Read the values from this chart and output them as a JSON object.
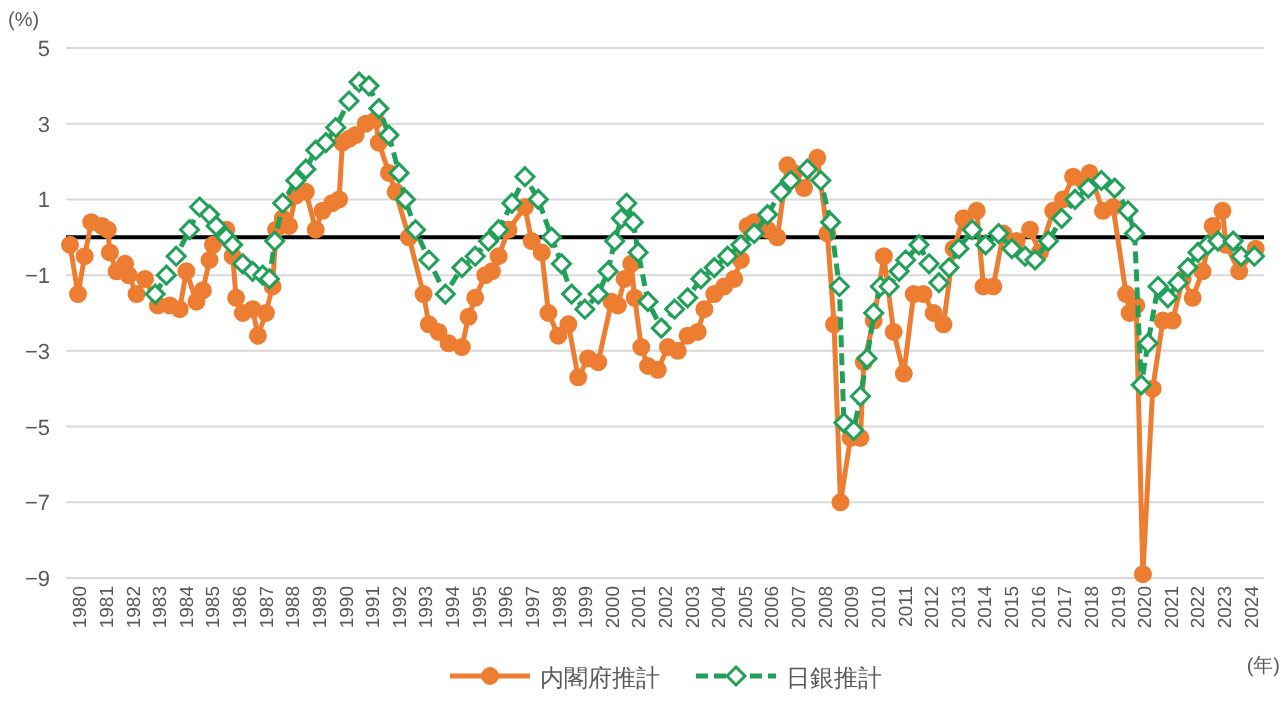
{
  "chart_data": {
    "type": "line",
    "ylabel": "(%)",
    "xlabel": "(年)",
    "xlim": [
      1980,
      2025
    ],
    "ylim": [
      -9,
      5
    ],
    "yticks": [
      {
        "value": -9,
        "label": "−9"
      },
      {
        "value": -7,
        "label": "−7"
      },
      {
        "value": -5,
        "label": "−5"
      },
      {
        "value": -3,
        "label": "−3"
      },
      {
        "value": -1,
        "label": "−1"
      },
      1,
      3,
      5
    ],
    "xticks": [
      {
        "value": 1980.5,
        "label": "1980"
      },
      {
        "value": 1981.5,
        "label": "1981"
      },
      {
        "value": 1982.5,
        "label": "1982"
      },
      {
        "value": 1983.5,
        "label": "1983"
      },
      {
        "value": 1984.5,
        "label": "1984"
      },
      {
        "value": 1985.5,
        "label": "1985"
      },
      {
        "value": 1986.5,
        "label": "1986"
      },
      {
        "value": 1987.5,
        "label": "1987"
      },
      {
        "value": 1988.5,
        "label": "1988"
      },
      {
        "value": 1989.5,
        "label": "1989"
      },
      {
        "value": 1990.5,
        "label": "1990"
      },
      {
        "value": 1991.5,
        "label": "1991"
      },
      {
        "value": 1992.5,
        "label": "1992"
      },
      {
        "value": 1993.5,
        "label": "1993"
      },
      {
        "value": 1994.5,
        "label": "1994"
      },
      {
        "value": 1995.5,
        "label": "1995"
      },
      {
        "value": 1996.5,
        "label": "1996"
      },
      {
        "value": 1997.5,
        "label": "1997"
      },
      {
        "value": 1998.5,
        "label": "1998"
      },
      {
        "value": 1999.5,
        "label": "1999"
      },
      {
        "value": 2000.5,
        "label": "2000"
      },
      {
        "value": 2001.5,
        "label": "2001"
      },
      {
        "value": 2002.5,
        "label": "2002"
      },
      {
        "value": 2003.5,
        "label": "2003"
      },
      {
        "value": 2004.5,
        "label": "2004"
      },
      {
        "value": 2005.5,
        "label": "2005"
      },
      {
        "value": 2006.5,
        "label": "2006"
      },
      {
        "value": 2007.5,
        "label": "2007"
      },
      {
        "value": 2008.5,
        "label": "2008"
      },
      {
        "value": 2009.5,
        "label": "2009"
      },
      {
        "value": 2010.5,
        "label": "2010"
      },
      {
        "value": 2011.5,
        "label": "2011"
      },
      {
        "value": 2012.5,
        "label": "2012"
      },
      {
        "value": 2013.5,
        "label": "2013"
      },
      {
        "value": 2014.5,
        "label": "2014"
      },
      {
        "value": 2015.5,
        "label": "2015"
      },
      {
        "value": 2016.5,
        "label": "2016"
      },
      {
        "value": 2017.5,
        "label": "2017"
      },
      {
        "value": 2018.5,
        "label": "2018"
      },
      {
        "value": 2019.5,
        "label": "2019"
      },
      {
        "value": 2020.5,
        "label": "2020"
      },
      {
        "value": 2021.5,
        "label": "2021"
      },
      {
        "value": 2022.5,
        "label": "2022"
      },
      {
        "value": 2023.5,
        "label": "2023"
      },
      {
        "value": 2024.5,
        "label": "2024"
      }
    ],
    "grid": "y",
    "legend": "bottom",
    "ref_lines": [
      {
        "axis": "y",
        "value": 0,
        "color": "#000000"
      }
    ],
    "series": [
      {
        "name": "内閣府推計",
        "color": "#ed7d31",
        "marker": "circle",
        "line_style": "solid",
        "x": [
          1980.15,
          1980.45,
          1980.7,
          1980.95,
          1981.35,
          1981.57,
          1981.65,
          1981.9,
          1982.22,
          1982.35,
          1982.65,
          1982.97,
          1983.45,
          1983.9,
          1984.27,
          1984.52,
          1984.9,
          1985.14,
          1985.39,
          1985.52,
          1986.02,
          1986.26,
          1986.39,
          1986.64,
          1987.01,
          1987.21,
          1987.51,
          1987.76,
          1987.89,
          1988.14,
          1988.38,
          1988.63,
          1989.01,
          1989.38,
          1989.63,
          1990.0,
          1990.26,
          1990.38,
          1990.63,
          1990.88,
          1991.26,
          1991.63,
          1991.75,
          1992.13,
          1992.38,
          1992.88,
          1993.43,
          1993.63,
          1993.99,
          1994.37,
          1994.87,
          1995.12,
          1995.37,
          1995.75,
          1996.0,
          1996.25,
          1996.62,
          1997.24,
          1997.49,
          1997.87,
          1998.12,
          1998.49,
          1998.87,
          1999.24,
          1999.61,
          1999.99,
          2000.49,
          2000.73,
          2000.98,
          2001.23,
          2001.36,
          2001.61,
          2001.86,
          2002.23,
          2002.61,
          2002.98,
          2003.35,
          2003.73,
          2003.98,
          2004.35,
          2004.72,
          2005.1,
          2005.35,
          2005.6,
          2005.85,
          2006.35,
          2006.72,
          2007.1,
          2007.35,
          2007.72,
          2008.22,
          2008.6,
          2008.85,
          2009.09,
          2009.47,
          2009.84,
          2009.97,
          2010.34,
          2010.72,
          2011.09,
          2011.47,
          2011.84,
          2012.21,
          2012.59,
          2012.96,
          2013.34,
          2013.71,
          2014.21,
          2014.46,
          2014.83,
          2015.21,
          2015.71,
          2016.21,
          2016.58,
          2017.08,
          2017.45,
          2017.83,
          2018.2,
          2018.45,
          2018.95,
          2019.33,
          2019.82,
          2019.95,
          2020.2,
          2020.45,
          2020.82,
          2021.2,
          2021.57,
          2021.95,
          2022.32,
          2022.69,
          2023.07,
          2023.44,
          2023.57,
          2024.07,
          2024.69
        ],
        "values": [
          -0.2,
          -1.5,
          -0.5,
          0.4,
          0.3,
          0.2,
          -0.4,
          -0.9,
          -0.7,
          -1.0,
          -1.5,
          -1.1,
          -1.8,
          -1.8,
          -1.9,
          -0.9,
          -1.7,
          -1.4,
          -0.6,
          -0.2,
          0.2,
          -0.5,
          -1.6,
          -2.0,
          -1.9,
          -2.6,
          -2.0,
          -1.3,
          0.2,
          0.5,
          0.3,
          1.1,
          1.2,
          0.2,
          0.7,
          0.9,
          1.0,
          2.5,
          2.6,
          2.7,
          3.0,
          3.1,
          2.5,
          1.7,
          1.2,
          0.0,
          -1.5,
          -2.3,
          -2.5,
          -2.8,
          -2.9,
          -2.1,
          -1.6,
          -1.0,
          -0.9,
          -0.5,
          0.2,
          0.8,
          -0.1,
          -0.4,
          -2.0,
          -2.6,
          -2.3,
          -3.7,
          -3.2,
          -3.3,
          -1.7,
          -1.8,
          -1.1,
          -0.7,
          -1.6,
          -2.9,
          -3.4,
          -3.5,
          -2.9,
          -3.0,
          -2.6,
          -2.5,
          -1.9,
          -1.5,
          -1.3,
          -1.1,
          -0.6,
          0.3,
          0.4,
          0.2,
          0.0,
          1.9,
          1.7,
          1.3,
          2.1,
          0.1,
          -2.3,
          -7.0,
          -5.3,
          -5.3,
          -3.3,
          -2.2,
          -0.5,
          -2.5,
          -3.6,
          -1.5,
          -1.5,
          -2.0,
          -2.3,
          -0.3,
          0.5,
          0.7,
          -1.3,
          -1.3,
          0.1,
          -0.1,
          0.2,
          -0.4,
          0.7,
          1.0,
          1.6,
          1.5,
          1.7,
          0.7,
          0.8,
          -1.5,
          -2.0,
          -1.8,
          -8.9,
          -4.0,
          -2.2,
          -2.2,
          -1.1,
          -1.6,
          -0.9,
          0.3,
          0.7,
          -0.2,
          -0.9,
          -0.3
        ]
      },
      {
        "name": "日銀推計",
        "color": "#21a05a",
        "marker": "diamond",
        "line_style": "dashed",
        "x": [
          1983.35,
          1983.77,
          1984.14,
          1984.64,
          1985.02,
          1985.39,
          1985.64,
          1986.02,
          1986.26,
          1986.64,
          1987.01,
          1987.39,
          1987.64,
          1987.84,
          1988.14,
          1988.63,
          1989.01,
          1989.38,
          1989.76,
          1990.13,
          1990.63,
          1991.01,
          1991.38,
          1991.75,
          1992.13,
          1992.51,
          1992.75,
          1993.13,
          1993.63,
          1994.25,
          1994.87,
          1995.37,
          1995.87,
          1996.25,
          1996.75,
          1997.24,
          1997.74,
          1998.24,
          1998.61,
          1998.99,
          1999.49,
          1999.99,
          2000.36,
          2000.61,
          2000.86,
          2001.06,
          2001.31,
          2001.49,
          2001.86,
          2002.36,
          2002.86,
          2003.35,
          2003.85,
          2004.35,
          2004.85,
          2005.35,
          2005.85,
          2006.35,
          2006.85,
          2007.22,
          2007.85,
          2008.35,
          2008.72,
          2009.05,
          2009.22,
          2009.59,
          2009.84,
          2010.09,
          2010.34,
          2010.59,
          2010.92,
          2011.29,
          2011.54,
          2012.04,
          2012.42,
          2012.79,
          2013.17,
          2013.54,
          2014.04,
          2014.54,
          2015.03,
          2015.53,
          2016.03,
          2016.4,
          2016.9,
          2017.4,
          2017.9,
          2018.4,
          2018.89,
          2019.39,
          2019.89,
          2020.14,
          2020.39,
          2020.64,
          2021.02,
          2021.39,
          2021.77,
          2022.14,
          2022.52,
          2022.89,
          2023.27,
          2023.84,
          2024.14,
          2024.64
        ],
        "values": [
          -1.5,
          -1.0,
          -0.5,
          0.2,
          0.8,
          0.6,
          0.3,
          0.0,
          -0.2,
          -0.7,
          -0.9,
          -1.0,
          -1.1,
          -0.1,
          0.9,
          1.5,
          1.8,
          2.3,
          2.5,
          2.9,
          3.6,
          4.1,
          4.0,
          3.4,
          2.7,
          1.7,
          1.0,
          0.2,
          -0.6,
          -1.5,
          -0.8,
          -0.5,
          -0.1,
          0.2,
          0.9,
          1.6,
          1.0,
          0.0,
          -0.7,
          -1.5,
          -1.9,
          -1.5,
          -0.9,
          -0.1,
          0.5,
          0.9,
          0.4,
          -0.4,
          -1.7,
          -2.4,
          -1.9,
          -1.6,
          -1.1,
          -0.8,
          -0.5,
          -0.2,
          0.1,
          0.6,
          1.2,
          1.5,
          1.8,
          1.5,
          0.4,
          -1.3,
          -4.9,
          -5.1,
          -4.2,
          -3.2,
          -2.0,
          -1.3,
          -1.3,
          -0.9,
          -0.6,
          -0.2,
          -0.7,
          -1.2,
          -0.8,
          -0.3,
          0.2,
          -0.2,
          0.1,
          -0.3,
          -0.5,
          -0.6,
          -0.1,
          0.5,
          1.0,
          1.3,
          1.5,
          1.3,
          0.7,
          0.1,
          -3.9,
          -2.8,
          -1.3,
          -1.6,
          -1.2,
          -0.8,
          -0.4,
          -0.2,
          -0.1,
          -0.1,
          -0.5,
          -0.5
        ]
      }
    ]
  }
}
